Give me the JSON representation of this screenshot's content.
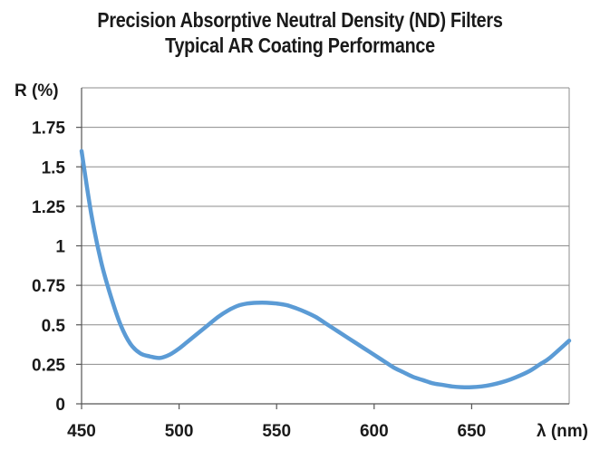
{
  "chart_data": {
    "type": "line",
    "title": "Precision Absorptive Neutral Density (ND) Filters",
    "subtitle": "Typical AR Coating Performance",
    "ylabel": "R (%)",
    "xlabel": "λ (nm)",
    "xlim": [
      450,
      700
    ],
    "ylim": [
      0,
      2
    ],
    "x_ticks": [
      "450",
      "500",
      "550",
      "600",
      "650"
    ],
    "y_ticks": [
      "0",
      "0.25",
      "0.5",
      "0.75",
      "1",
      "1.25",
      "1.5",
      "1.75"
    ],
    "grid": true,
    "line_color": "#5b9bd5",
    "series": [
      {
        "x": [
          450,
          455,
          460,
          465,
          470,
          475,
          480,
          485,
          490,
          495,
          500,
          505,
          510,
          515,
          520,
          525,
          530,
          535,
          540,
          545,
          550,
          555,
          560,
          565,
          570,
          575,
          580,
          585,
          590,
          595,
          600,
          605,
          610,
          615,
          620,
          625,
          630,
          635,
          640,
          645,
          650,
          655,
          660,
          665,
          670,
          675,
          680,
          685,
          690,
          700
        ],
        "values": [
          1.6,
          1.2,
          0.9,
          0.68,
          0.5,
          0.38,
          0.32,
          0.3,
          0.29,
          0.31,
          0.35,
          0.4,
          0.45,
          0.5,
          0.55,
          0.59,
          0.62,
          0.635,
          0.64,
          0.64,
          0.635,
          0.625,
          0.605,
          0.58,
          0.55,
          0.51,
          0.47,
          0.43,
          0.39,
          0.35,
          0.31,
          0.27,
          0.23,
          0.2,
          0.17,
          0.15,
          0.13,
          0.12,
          0.11,
          0.105,
          0.105,
          0.11,
          0.12,
          0.135,
          0.155,
          0.18,
          0.21,
          0.25,
          0.29,
          0.4
        ]
      }
    ]
  }
}
